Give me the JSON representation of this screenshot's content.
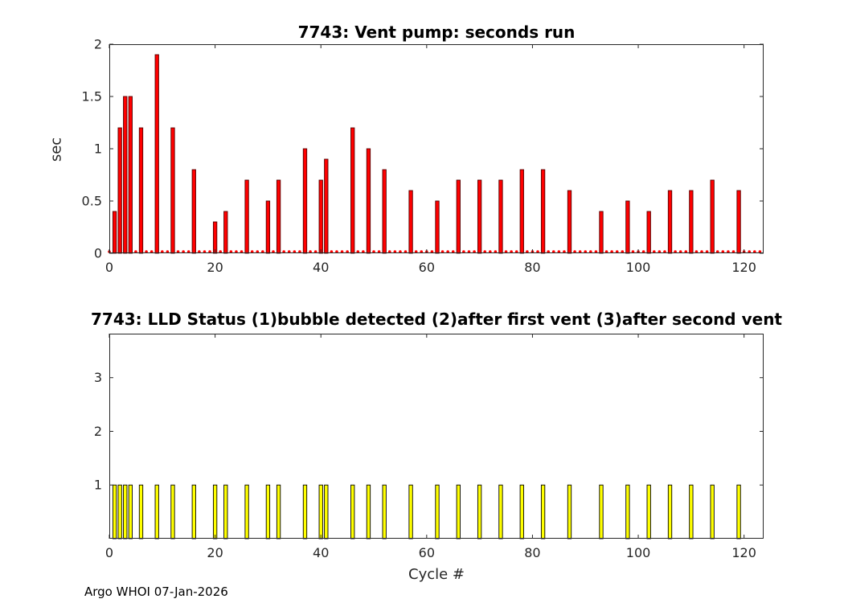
{
  "footer": "Argo WHOI 07-Jan-2026",
  "chart_data": [
    {
      "type": "bar",
      "title": "7743: Vent pump: seconds run",
      "ylabel": "sec",
      "xlabel": "",
      "xlim": [
        0,
        123.7
      ],
      "ylim": [
        0,
        2
      ],
      "xtick_values": [
        0,
        20,
        40,
        60,
        80,
        100,
        120
      ],
      "xtick_labels": [
        "0",
        "20",
        "40",
        "60",
        "80",
        "100",
        "120"
      ],
      "ytick_values": [
        0,
        0.5,
        1,
        1.5,
        2
      ],
      "ytick_labels": [
        "0",
        "0.5",
        "1",
        "1.5",
        "2"
      ],
      "grid": false,
      "legend": null,
      "bar_color": "#ff0000",
      "bar_edge_color": "#550000",
      "zero_markers": true,
      "zero_marker_color": "#ff0000",
      "x": [
        1,
        2,
        3,
        4,
        6,
        9,
        12,
        16,
        20,
        22,
        26,
        30,
        32,
        37,
        40,
        41,
        46,
        49,
        52,
        57,
        62,
        66,
        70,
        74,
        78,
        82,
        87,
        93,
        98,
        102,
        106,
        110,
        114,
        119
      ],
      "values": [
        0.4,
        1.2,
        1.5,
        1.5,
        1.2,
        1.9,
        1.2,
        0.8,
        0.3,
        0.4,
        0.7,
        0.5,
        0.7,
        1.0,
        0.7,
        0.9,
        1.2,
        1.0,
        0.8,
        0.6,
        0.5,
        0.7,
        0.7,
        0.7,
        0.8,
        0.8,
        0.6,
        0.4,
        0.5,
        0.4,
        0.6,
        0.6,
        0.7,
        0.6
      ]
    },
    {
      "type": "bar",
      "title": "7743: LLD Status   (1)bubble detected   (2)after first vent  (3)after second vent",
      "ylabel": "",
      "xlabel": "Cycle #",
      "xlim": [
        0,
        123.7
      ],
      "ylim": [
        0,
        3.82
      ],
      "xtick_values": [
        0,
        20,
        40,
        60,
        80,
        100,
        120
      ],
      "xtick_labels": [
        "0",
        "20",
        "40",
        "60",
        "80",
        "100",
        "120"
      ],
      "ytick_values": [
        1,
        2,
        3
      ],
      "ytick_labels": [
        "1",
        "2",
        "3"
      ],
      "grid": false,
      "legend": null,
      "bar_color": "#ffff00",
      "bar_edge_color": "#000000",
      "zero_markers": false,
      "zero_marker_color": "#ffff00",
      "x": [
        1,
        2,
        3,
        4,
        6,
        9,
        12,
        16,
        20,
        22,
        26,
        30,
        32,
        37,
        40,
        41,
        46,
        49,
        52,
        57,
        62,
        66,
        70,
        74,
        78,
        82,
        87,
        93,
        98,
        102,
        106,
        110,
        114,
        119
      ],
      "values": [
        1,
        1,
        1,
        1,
        1,
        1,
        1,
        1,
        1,
        1,
        1,
        1,
        1,
        1,
        1,
        1,
        1,
        1,
        1,
        1,
        1,
        1,
        1,
        1,
        1,
        1,
        1,
        1,
        1,
        1,
        1,
        1,
        1,
        1
      ]
    }
  ]
}
